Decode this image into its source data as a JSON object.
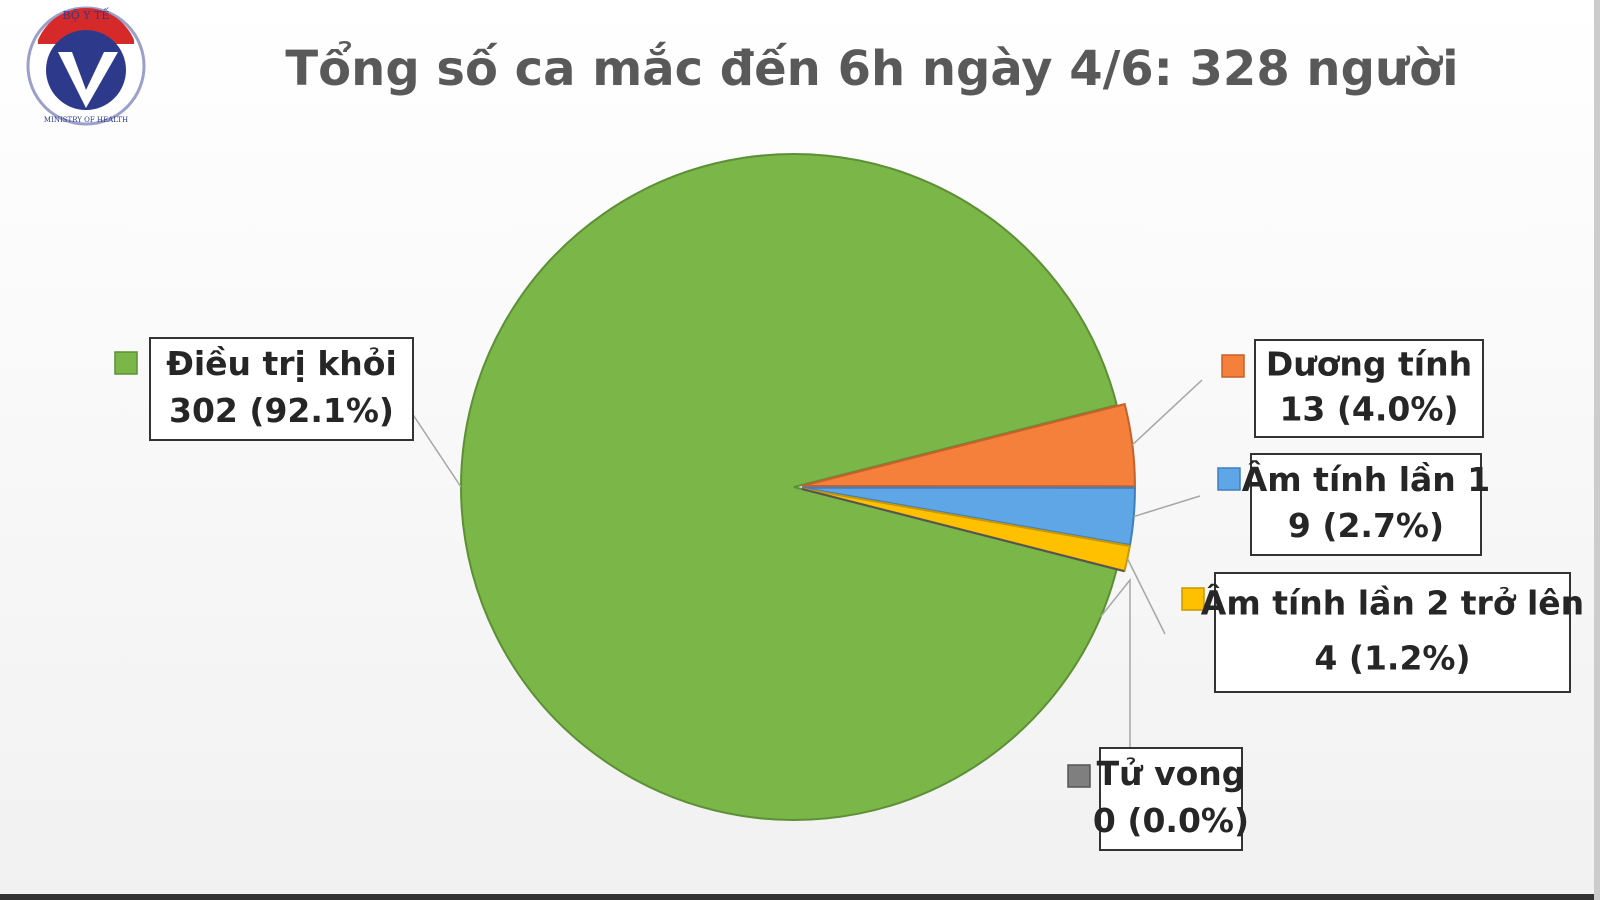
{
  "logo": {
    "top": "BỘ Y TẾ",
    "bottom": "MINISTRY OF HEALTH"
  },
  "chart_data": {
    "type": "pie",
    "title": "Tổng số ca mắc đến 6h ngày 4/6: 328 người",
    "categories": [
      "Điều trị khỏi",
      "Dương tính",
      "Âm tính lần 1",
      "Âm tính lần 2 trở lên",
      "Tử vong"
    ],
    "values": [
      302,
      13,
      9,
      4,
      0
    ],
    "value_labels": [
      "302 (92.1%)",
      "13 (4.0%)",
      "9 (2.7%)",
      "4 (1.2%)",
      "0 (0.0%)"
    ],
    "colors": [
      "#7ab648",
      "#f4803b",
      "#5ea6e6",
      "#ffc000",
      "#7f7f7f"
    ]
  }
}
